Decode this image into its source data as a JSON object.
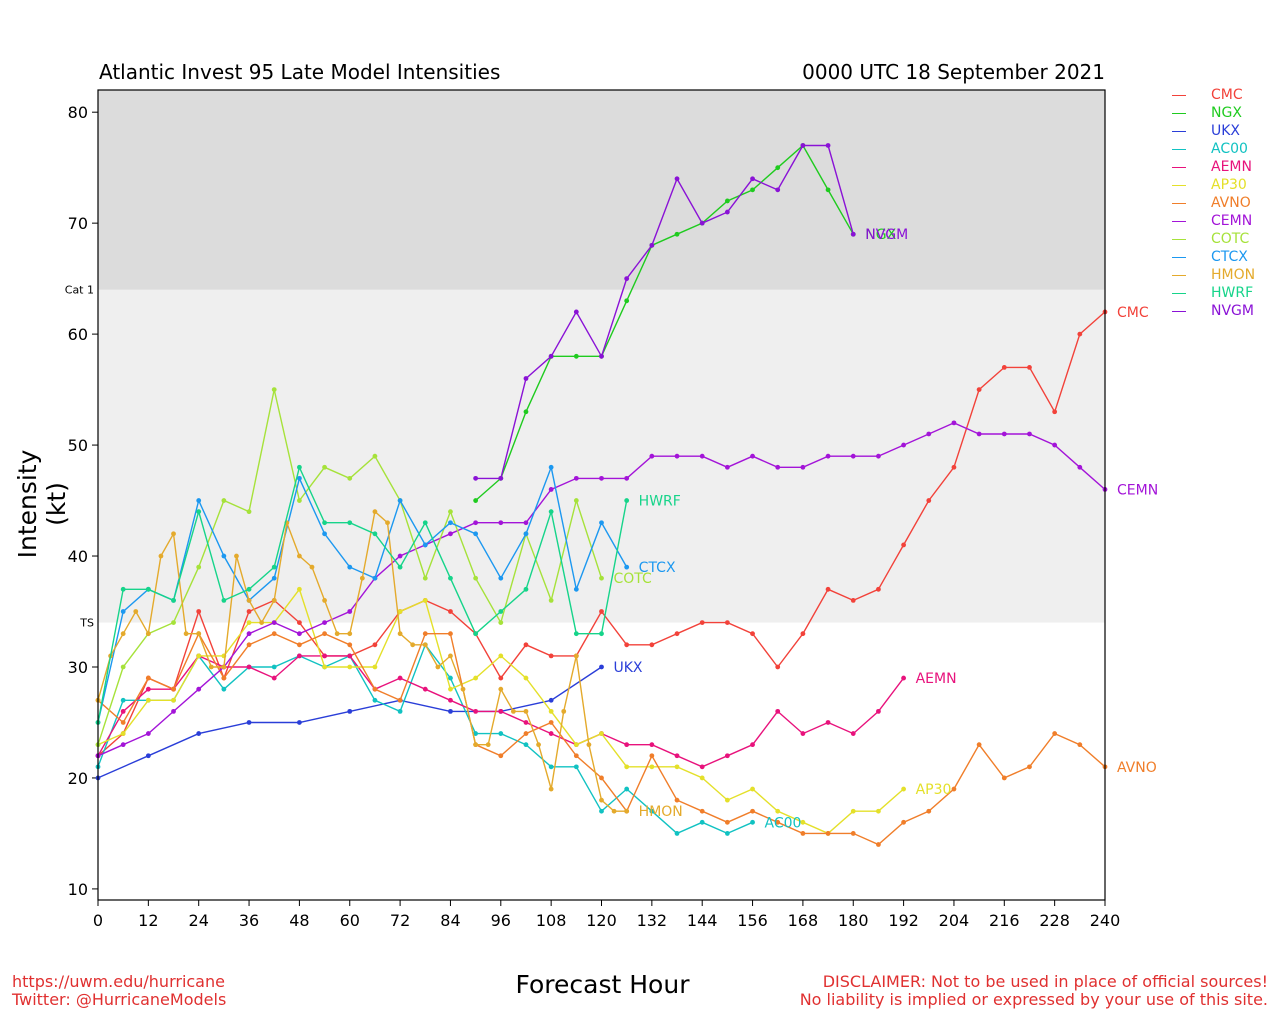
{
  "header": {
    "title_left": "Atlantic Invest 95 Late Model Intensities",
    "title_right": "0000 UTC 18 September 2021"
  },
  "footer": {
    "url": "https://uwm.edu/hurricane",
    "twitter": "Twitter: @HurricaneModels",
    "disclaimer_1": "DISCLAIMER: Not to be used in place of official sources!",
    "disclaimer_2": "No liability is implied or expressed by your use of this site."
  },
  "colors": {
    "CMC": "#f2423a",
    "NGX": "#1fcb1f",
    "UKX": "#2a3ed8",
    "AC00": "#11c2c2",
    "AEMN": "#e8127c",
    "AP30": "#e4e02a",
    "AVNO": "#f07e2a",
    "CEMN": "#a314d8",
    "COTC": "#a6e23a",
    "CTCX": "#1c98f0",
    "HMON": "#e4aa2c",
    "HWRF": "#16d48a",
    "NVGM": "#8a12d6",
    "ts_band": "#efefef",
    "hurricane_band": "#dcdcdc"
  },
  "chart_data": {
    "type": "line",
    "xlabel": "Forecast Hour",
    "ylabel": "Intensity (kt)",
    "xlim": [
      0,
      240
    ],
    "ylim": [
      9,
      82
    ],
    "x_ticks": [
      0,
      12,
      24,
      36,
      48,
      60,
      72,
      84,
      96,
      108,
      120,
      132,
      144,
      156,
      168,
      180,
      192,
      204,
      216,
      228,
      240
    ],
    "y_ticks": [
      10,
      20,
      30,
      40,
      50,
      60,
      70,
      80
    ],
    "thresholds": [
      {
        "label": "TS",
        "value": 34
      },
      {
        "label": "Cat 1",
        "value": 64
      }
    ],
    "legend_position": "right",
    "legend": [
      "CMC",
      "NGX",
      "UKX",
      "AC00",
      "AEMN",
      "AP30",
      "AVNO",
      "CEMN",
      "COTC",
      "CTCX",
      "HMON",
      "HWRF",
      "NVGM"
    ],
    "series": [
      {
        "name": "CMC",
        "end_label": "CMC",
        "x": [
          0,
          6,
          12,
          18,
          24,
          30,
          36,
          42,
          48,
          54,
          60,
          66,
          72,
          78,
          84,
          90,
          96,
          102,
          108,
          114,
          120,
          126,
          132,
          138,
          144,
          150,
          156,
          162,
          168,
          174,
          180,
          186,
          192,
          198,
          204,
          210,
          216,
          222,
          228,
          234,
          240
        ],
        "y": [
          22,
          24,
          29,
          28,
          35,
          29,
          35,
          36,
          34,
          31,
          31,
          32,
          35,
          36,
          35,
          33,
          29,
          32,
          31,
          31,
          35,
          32,
          32,
          33,
          34,
          34,
          33,
          30,
          33,
          37,
          36,
          37,
          41,
          45,
          48,
          55,
          57,
          57,
          53,
          60,
          62
        ]
      },
      {
        "name": "NGX",
        "end_label": "NGX",
        "x": [
          90,
          96,
          102,
          108,
          114,
          120,
          126,
          132,
          138,
          144,
          150,
          156,
          162,
          168,
          174,
          180
        ],
        "y": [
          45,
          47,
          53,
          58,
          58,
          58,
          63,
          68,
          69,
          70,
          72,
          73,
          75,
          77,
          73,
          69
        ]
      },
      {
        "name": "UKX",
        "end_label": "UKX",
        "x": [
          0,
          12,
          24,
          36,
          48,
          60,
          72,
          84,
          96,
          108,
          120
        ],
        "y": [
          20,
          22,
          24,
          25,
          25,
          26,
          27,
          26,
          26,
          27,
          30
        ]
      },
      {
        "name": "AC00",
        "end_label": "AC00",
        "x": [
          0,
          6,
          12,
          18,
          24,
          30,
          36,
          42,
          48,
          54,
          60,
          66,
          72,
          78,
          84,
          90,
          96,
          102,
          108,
          114,
          120,
          126,
          132,
          138,
          144,
          150,
          156
        ],
        "y": [
          21,
          27,
          27,
          27,
          31,
          28,
          30,
          30,
          31,
          30,
          31,
          27,
          26,
          32,
          29,
          24,
          24,
          23,
          21,
          21,
          17,
          19,
          17,
          15,
          16,
          15,
          16
        ]
      },
      {
        "name": "AEMN",
        "end_label": "AEMN",
        "x": [
          0,
          6,
          12,
          18,
          24,
          30,
          36,
          42,
          48,
          54,
          60,
          66,
          72,
          78,
          84,
          90,
          96,
          102,
          108,
          114,
          120,
          126,
          132,
          138,
          144,
          150,
          156,
          162,
          168,
          174,
          180,
          186,
          192
        ],
        "y": [
          22,
          26,
          28,
          28,
          31,
          30,
          30,
          29,
          31,
          31,
          31,
          28,
          29,
          28,
          27,
          26,
          26,
          25,
          24,
          23,
          24,
          23,
          23,
          22,
          21,
          22,
          23,
          26,
          24,
          25,
          24,
          26,
          29
        ]
      },
      {
        "name": "AP30",
        "end_label": "AP30",
        "x": [
          0,
          6,
          12,
          18,
          24,
          30,
          36,
          42,
          48,
          54,
          60,
          66,
          72,
          78,
          84,
          90,
          96,
          102,
          108,
          114,
          120,
          126,
          132,
          138,
          144,
          150,
          156,
          162,
          168,
          174,
          180,
          186,
          192
        ],
        "y": [
          23,
          24,
          27,
          27,
          31,
          31,
          34,
          34,
          37,
          30,
          30,
          30,
          35,
          36,
          28,
          29,
          31,
          29,
          26,
          23,
          24,
          21,
          21,
          21,
          20,
          18,
          19,
          17,
          16,
          15,
          17,
          17,
          19
        ]
      },
      {
        "name": "AVNO",
        "end_label": "AVNO",
        "x": [
          0,
          6,
          12,
          18,
          24,
          30,
          36,
          42,
          48,
          54,
          60,
          66,
          72,
          78,
          84,
          90,
          96,
          102,
          108,
          114,
          120,
          126,
          132,
          138,
          144,
          150,
          156,
          162,
          168,
          174,
          180,
          186,
          192,
          198,
          204,
          210,
          216,
          222,
          228,
          234,
          240
        ],
        "y": [
          27,
          25,
          29,
          28,
          33,
          29,
          32,
          33,
          32,
          33,
          32,
          28,
          27,
          33,
          33,
          23,
          22,
          24,
          25,
          22,
          20,
          17,
          22,
          18,
          17,
          16,
          17,
          16,
          15,
          15,
          15,
          14,
          16,
          17,
          19,
          23,
          20,
          21,
          24,
          23,
          21
        ]
      },
      {
        "name": "CEMN",
        "end_label": "CEMN",
        "x": [
          0,
          6,
          12,
          18,
          24,
          30,
          36,
          42,
          48,
          54,
          60,
          66,
          72,
          78,
          84,
          90,
          96,
          102,
          108,
          114,
          120,
          126,
          132,
          138,
          144,
          150,
          156,
          162,
          168,
          174,
          180,
          186,
          192,
          198,
          204,
          210,
          216,
          222,
          228,
          234,
          240
        ],
        "y": [
          22,
          23,
          24,
          26,
          28,
          30,
          33,
          34,
          33,
          34,
          35,
          38,
          40,
          41,
          42,
          43,
          43,
          43,
          46,
          47,
          47,
          47,
          49,
          49,
          49,
          48,
          49,
          48,
          48,
          49,
          49,
          49,
          50,
          51,
          52,
          51,
          51,
          51,
          50,
          48,
          46
        ]
      },
      {
        "name": "COTC",
        "end_label": "COTC",
        "x": [
          0,
          6,
          12,
          18,
          24,
          30,
          36,
          42,
          48,
          54,
          60,
          66,
          72,
          78,
          84,
          90,
          96,
          102,
          108,
          114,
          120
        ],
        "y": [
          23,
          30,
          33,
          34,
          39,
          45,
          44,
          55,
          45,
          48,
          47,
          49,
          45,
          38,
          44,
          38,
          34,
          42,
          36,
          45,
          38
        ]
      },
      {
        "name": "CTCX",
        "end_label": "CTCX",
        "x": [
          0,
          6,
          12,
          18,
          24,
          30,
          36,
          42,
          48,
          54,
          60,
          66,
          72,
          78,
          84,
          90,
          96,
          102,
          108,
          114,
          120,
          126
        ],
        "y": [
          25,
          35,
          37,
          36,
          45,
          40,
          36,
          38,
          47,
          42,
          39,
          38,
          45,
          41,
          43,
          42,
          38,
          42,
          48,
          37,
          43,
          39
        ]
      },
      {
        "name": "HMON",
        "end_label": "HMON",
        "x": [
          0,
          3,
          6,
          9,
          12,
          15,
          18,
          21,
          24,
          27,
          30,
          33,
          36,
          39,
          42,
          45,
          48,
          51,
          54,
          57,
          60,
          63,
          66,
          69,
          72,
          75,
          78,
          81,
          84,
          87,
          90,
          93,
          96,
          99,
          102,
          105,
          108,
          111,
          114,
          117,
          120,
          123,
          126
        ],
        "y": [
          27,
          31,
          33,
          35,
          33,
          40,
          42,
          33,
          33,
          30,
          30,
          40,
          36,
          34,
          36,
          43,
          40,
          39,
          36,
          33,
          33,
          38,
          44,
          43,
          33,
          32,
          32,
          30,
          31,
          28,
          23,
          23,
          28,
          26,
          26,
          23,
          19,
          26,
          31,
          23,
          18,
          17,
          17
        ]
      },
      {
        "name": "HWRF",
        "end_label": "HWRF",
        "x": [
          0,
          6,
          12,
          18,
          24,
          30,
          36,
          42,
          48,
          54,
          60,
          66,
          72,
          78,
          84,
          90,
          96,
          102,
          108,
          114,
          120,
          126
        ],
        "y": [
          25,
          37,
          37,
          36,
          44,
          36,
          37,
          39,
          48,
          43,
          43,
          42,
          39,
          43,
          38,
          33,
          35,
          37,
          44,
          33,
          33,
          45
        ]
      },
      {
        "name": "NVGM",
        "end_label": "NVGM",
        "x": [
          90,
          96,
          102,
          108,
          114,
          120,
          126,
          132,
          138,
          144,
          150,
          156,
          162,
          168,
          174,
          180
        ],
        "y": [
          47,
          47,
          56,
          58,
          62,
          58,
          65,
          68,
          74,
          70,
          71,
          74,
          73,
          77,
          77,
          69
        ]
      }
    ]
  }
}
